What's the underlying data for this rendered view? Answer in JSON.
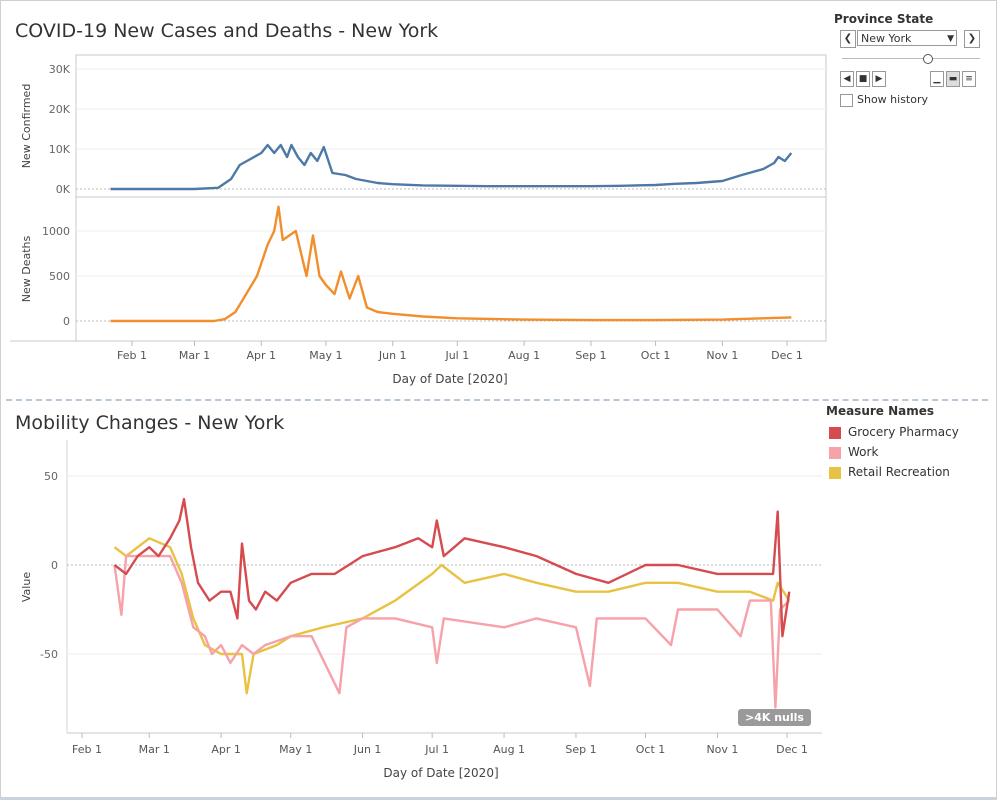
{
  "dashboard": {
    "top_title": "COVID-19 New Cases and Deaths - New York",
    "bottom_title": "Mobility Changes - New York"
  },
  "filter": {
    "label": "Province State",
    "selected": "New York",
    "show_history_label": "Show history",
    "show_history_checked": false
  },
  "legend": {
    "title": "Measure Names",
    "items": [
      {
        "label": "Grocery Pharmacy",
        "color": "#d64b4f"
      },
      {
        "label": "Work",
        "color": "#f7a1a9"
      },
      {
        "label": "Retail Recreation",
        "color": "#e8c242"
      }
    ]
  },
  "nulls_badge": ">4K nulls",
  "chart_data": [
    {
      "type": "line",
      "title": "COVID-19 New Cases and Deaths - New York",
      "xlabel": "Day of Date [2020]",
      "x_tick_labels": [
        "Feb 1",
        "Mar 1",
        "Apr 1",
        "May 1",
        "Jun 1",
        "Jul 1",
        "Aug 1",
        "Sep 1",
        "Oct 1",
        "Nov 1",
        "Dec 1"
      ],
      "panels": [
        {
          "ylabel": "New Confirmed",
          "y_tick_labels": [
            "30K",
            "20K",
            "10K",
            "0K"
          ],
          "ylim": [
            0,
            31000
          ],
          "series": [
            {
              "color": "#4e79a7",
              "points": [
                [
                  "2020-01-22",
                  0
                ],
                [
                  "2020-03-01",
                  0
                ],
                [
                  "2020-03-12",
                  300
                ],
                [
                  "2020-03-18",
                  2500
                ],
                [
                  "2020-03-22",
                  6000
                ],
                [
                  "2020-03-27",
                  7500
                ],
                [
                  "2020-04-01",
                  9000
                ],
                [
                  "2020-04-04",
                  11000
                ],
                [
                  "2020-04-07",
                  9000
                ],
                [
                  "2020-04-10",
                  11000
                ],
                [
                  "2020-04-13",
                  8000
                ],
                [
                  "2020-04-15",
                  11000
                ],
                [
                  "2020-04-18",
                  8000
                ],
                [
                  "2020-04-21",
                  6000
                ],
                [
                  "2020-04-24",
                  9000
                ],
                [
                  "2020-04-27",
                  7000
                ],
                [
                  "2020-04-30",
                  10500
                ],
                [
                  "2020-05-04",
                  4000
                ],
                [
                  "2020-05-10",
                  3500
                ],
                [
                  "2020-05-15",
                  2500
                ],
                [
                  "2020-05-20",
                  2000
                ],
                [
                  "2020-05-25",
                  1500
                ],
                [
                  "2020-06-01",
                  1200
                ],
                [
                  "2020-06-15",
                  900
                ],
                [
                  "2020-07-01",
                  800
                ],
                [
                  "2020-07-15",
                  700
                ],
                [
                  "2020-08-01",
                  700
                ],
                [
                  "2020-08-15",
                  700
                ],
                [
                  "2020-09-01",
                  700
                ],
                [
                  "2020-09-15",
                  800
                ],
                [
                  "2020-10-01",
                  1000
                ],
                [
                  "2020-10-10",
                  1300
                ],
                [
                  "2020-10-20",
                  1500
                ],
                [
                  "2020-11-01",
                  2000
                ],
                [
                  "2020-11-10",
                  3500
                ],
                [
                  "2020-11-20",
                  5000
                ],
                [
                  "2020-11-25",
                  6500
                ],
                [
                  "2020-11-27",
                  8000
                ],
                [
                  "2020-11-30",
                  7000
                ],
                [
                  "2020-12-03",
                  9000
                ]
              ]
            }
          ]
        },
        {
          "ylabel": "New Deaths",
          "y_tick_labels": [
            "1000",
            "500",
            "0"
          ],
          "ylim": [
            -50,
            1300
          ],
          "series": [
            {
              "color": "#f28e2b",
              "points": [
                [
                  "2020-01-22",
                  0
                ],
                [
                  "2020-03-10",
                  0
                ],
                [
                  "2020-03-15",
                  20
                ],
                [
                  "2020-03-20",
                  100
                ],
                [
                  "2020-03-25",
                  300
                ],
                [
                  "2020-03-30",
                  500
                ],
                [
                  "2020-04-04",
                  850
                ],
                [
                  "2020-04-07",
                  1000
                ],
                [
                  "2020-04-09",
                  1270
                ],
                [
                  "2020-04-11",
                  900
                ],
                [
                  "2020-04-14",
                  950
                ],
                [
                  "2020-04-17",
                  1000
                ],
                [
                  "2020-04-20",
                  700
                ],
                [
                  "2020-04-22",
                  500
                ],
                [
                  "2020-04-25",
                  950
                ],
                [
                  "2020-04-28",
                  500
                ],
                [
                  "2020-05-01",
                  400
                ],
                [
                  "2020-05-05",
                  300
                ],
                [
                  "2020-05-08",
                  550
                ],
                [
                  "2020-05-12",
                  250
                ],
                [
                  "2020-05-16",
                  500
                ],
                [
                  "2020-05-20",
                  150
                ],
                [
                  "2020-05-25",
                  100
                ],
                [
                  "2020-06-01",
                  80
                ],
                [
                  "2020-06-15",
                  50
                ],
                [
                  "2020-07-01",
                  30
                ],
                [
                  "2020-08-01",
                  15
                ],
                [
                  "2020-09-01",
                  10
                ],
                [
                  "2020-10-01",
                  10
                ],
                [
                  "2020-11-01",
                  15
                ],
                [
                  "2020-11-20",
                  30
                ],
                [
                  "2020-12-03",
                  40
                ]
              ]
            }
          ]
        }
      ]
    },
    {
      "type": "line",
      "title": "Mobility Changes - New York",
      "xlabel": "Day of Date [2020]",
      "ylabel": "Value",
      "x_tick_labels": [
        "Feb 1",
        "Mar 1",
        "Apr 1",
        "May 1",
        "Jun 1",
        "Jul 1",
        "Aug 1",
        "Sep 1",
        "Oct 1",
        "Nov 1",
        "Dec 1"
      ],
      "y_tick_labels": [
        "50",
        "0",
        "-50"
      ],
      "ylim": [
        -95,
        68
      ],
      "series": [
        {
          "name": "Grocery Pharmacy",
          "color": "#d64b4f",
          "points": [
            [
              "2020-02-15",
              0
            ],
            [
              "2020-02-20",
              -5
            ],
            [
              "2020-02-25",
              5
            ],
            [
              "2020-03-01",
              10
            ],
            [
              "2020-03-05",
              5
            ],
            [
              "2020-03-10",
              15
            ],
            [
              "2020-03-14",
              25
            ],
            [
              "2020-03-16",
              37
            ],
            [
              "2020-03-19",
              10
            ],
            [
              "2020-03-22",
              -10
            ],
            [
              "2020-03-27",
              -20
            ],
            [
              "2020-04-01",
              -15
            ],
            [
              "2020-04-05",
              -15
            ],
            [
              "2020-04-08",
              -30
            ],
            [
              "2020-04-10",
              12
            ],
            [
              "2020-04-13",
              -20
            ],
            [
              "2020-04-16",
              -25
            ],
            [
              "2020-04-20",
              -15
            ],
            [
              "2020-04-25",
              -20
            ],
            [
              "2020-05-01",
              -10
            ],
            [
              "2020-05-10",
              -5
            ],
            [
              "2020-05-20",
              -5
            ],
            [
              "2020-06-01",
              5
            ],
            [
              "2020-06-15",
              10
            ],
            [
              "2020-06-25",
              15
            ],
            [
              "2020-07-01",
              10
            ],
            [
              "2020-07-03",
              25
            ],
            [
              "2020-07-06",
              5
            ],
            [
              "2020-07-15",
              15
            ],
            [
              "2020-08-01",
              10
            ],
            [
              "2020-08-15",
              5
            ],
            [
              "2020-09-01",
              -5
            ],
            [
              "2020-09-15",
              -10
            ],
            [
              "2020-10-01",
              0
            ],
            [
              "2020-10-15",
              0
            ],
            [
              "2020-11-01",
              -5
            ],
            [
              "2020-11-15",
              -5
            ],
            [
              "2020-11-25",
              -5
            ],
            [
              "2020-11-27",
              30
            ],
            [
              "2020-11-29",
              -40
            ],
            [
              "2020-12-02",
              -15
            ]
          ]
        },
        {
          "name": "Work",
          "color": "#f7a1a9",
          "points": [
            [
              "2020-02-15",
              0
            ],
            [
              "2020-02-18",
              -28
            ],
            [
              "2020-02-20",
              5
            ],
            [
              "2020-03-01",
              5
            ],
            [
              "2020-03-10",
              5
            ],
            [
              "2020-03-15",
              -10
            ],
            [
              "2020-03-20",
              -35
            ],
            [
              "2020-03-25",
              -40
            ],
            [
              "2020-03-28",
              -50
            ],
            [
              "2020-04-01",
              -45
            ],
            [
              "2020-04-05",
              -55
            ],
            [
              "2020-04-10",
              -45
            ],
            [
              "2020-04-15",
              -50
            ],
            [
              "2020-04-20",
              -45
            ],
            [
              "2020-05-01",
              -40
            ],
            [
              "2020-05-10",
              -40
            ],
            [
              "2020-05-22",
              -72
            ],
            [
              "2020-05-25",
              -35
            ],
            [
              "2020-06-01",
              -30
            ],
            [
              "2020-06-15",
              -30
            ],
            [
              "2020-07-01",
              -35
            ],
            [
              "2020-07-03",
              -55
            ],
            [
              "2020-07-06",
              -30
            ],
            [
              "2020-08-01",
              -35
            ],
            [
              "2020-08-15",
              -30
            ],
            [
              "2020-09-01",
              -35
            ],
            [
              "2020-09-07",
              -68
            ],
            [
              "2020-09-10",
              -30
            ],
            [
              "2020-10-01",
              -30
            ],
            [
              "2020-10-12",
              -45
            ],
            [
              "2020-10-15",
              -25
            ],
            [
              "2020-11-01",
              -25
            ],
            [
              "2020-11-11",
              -40
            ],
            [
              "2020-11-15",
              -20
            ],
            [
              "2020-11-24",
              -20
            ],
            [
              "2020-11-26",
              -80
            ],
            [
              "2020-11-28",
              -25
            ],
            [
              "2020-12-02",
              -20
            ]
          ]
        },
        {
          "name": "Retail Recreation",
          "color": "#e8c242",
          "points": [
            [
              "2020-02-15",
              10
            ],
            [
              "2020-02-20",
              5
            ],
            [
              "2020-03-01",
              15
            ],
            [
              "2020-03-10",
              10
            ],
            [
              "2020-03-15",
              -5
            ],
            [
              "2020-03-20",
              -30
            ],
            [
              "2020-03-25",
              -45
            ],
            [
              "2020-04-01",
              -50
            ],
            [
              "2020-04-10",
              -50
            ],
            [
              "2020-04-12",
              -72
            ],
            [
              "2020-04-15",
              -50
            ],
            [
              "2020-04-25",
              -45
            ],
            [
              "2020-05-01",
              -40
            ],
            [
              "2020-05-15",
              -35
            ],
            [
              "2020-06-01",
              -30
            ],
            [
              "2020-06-15",
              -20
            ],
            [
              "2020-07-01",
              -5
            ],
            [
              "2020-07-05",
              0
            ],
            [
              "2020-07-15",
              -10
            ],
            [
              "2020-08-01",
              -5
            ],
            [
              "2020-08-15",
              -10
            ],
            [
              "2020-09-01",
              -15
            ],
            [
              "2020-09-15",
              -15
            ],
            [
              "2020-10-01",
              -10
            ],
            [
              "2020-10-15",
              -10
            ],
            [
              "2020-11-01",
              -15
            ],
            [
              "2020-11-15",
              -15
            ],
            [
              "2020-11-25",
              -20
            ],
            [
              "2020-11-27",
              -10
            ],
            [
              "2020-12-02",
              -20
            ]
          ]
        }
      ]
    }
  ]
}
